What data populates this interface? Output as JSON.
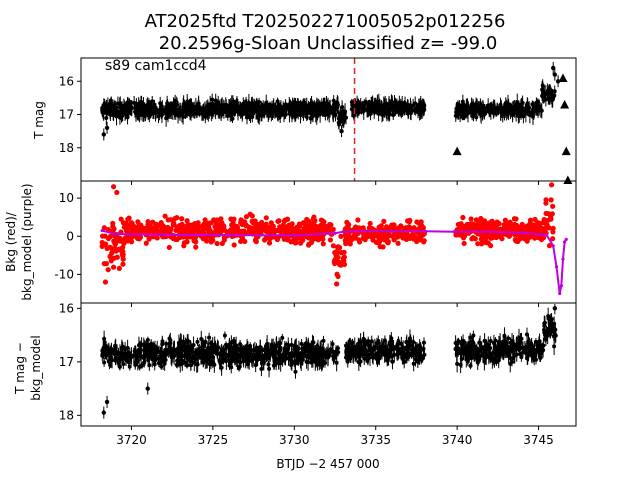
{
  "figure": {
    "title_line1": "AT2025ftd  T202502271005052p012256",
    "title_line2": "20.2596g-Sloan Unclassified z= -99.0",
    "xlabel": "BTJD −2 457 000"
  },
  "chart_data": [
    {
      "type": "scatter",
      "panel": "top",
      "ylabel": "T mag",
      "annotation": "s89 cam1ccd4",
      "xlim": [
        3716.9,
        3747.3
      ],
      "ylim": [
        19.0,
        15.3
      ],
      "y_inverted": true,
      "yticks": [
        16,
        17,
        18
      ],
      "vline_x": 3733.7,
      "vline_color": "#d62728",
      "point_color": "#000000",
      "segments": [
        {
          "x_start": 3718.2,
          "x_end": 3732.7,
          "y_center": 16.85,
          "scatter": 0.28
        },
        {
          "x_start": 3732.7,
          "x_end": 3733.2,
          "y_center": 17.05,
          "scatter": 0.4
        },
        {
          "x_start": 3733.5,
          "x_end": 3738.0,
          "y_center": 16.8,
          "scatter": 0.25
        },
        {
          "x_start": 3739.9,
          "x_end": 3745.2,
          "y_center": 16.85,
          "scatter": 0.28
        },
        {
          "x_start": 3745.2,
          "x_end": 3746.0,
          "y_center": 16.4,
          "scatter": 0.35
        }
      ],
      "outlier_points": [
        [
          3718.3,
          17.6
        ],
        [
          3718.5,
          17.4
        ],
        [
          3732.9,
          17.5
        ],
        [
          3745.9,
          15.6
        ],
        [
          3746.0,
          15.8
        ],
        [
          3746.2,
          16.0
        ],
        [
          3745.7,
          16.3
        ]
      ],
      "triangle_markers": [
        [
          3740.0,
          18.1
        ],
        [
          3746.5,
          15.9
        ],
        [
          3746.6,
          16.7
        ],
        [
          3746.7,
          18.1
        ],
        [
          3746.8,
          19.0
        ]
      ]
    },
    {
      "type": "scatter",
      "panel": "middle",
      "ylabel_line1": "Bkg (red)/",
      "ylabel_line2": "bkg_model (purple)",
      "xlim": [
        3716.9,
        3747.3
      ],
      "ylim": [
        -17.5,
        14.5
      ],
      "yticks": [
        10,
        0,
        -10
      ],
      "series": [
        {
          "role": "bkg",
          "color": "#ff0000"
        },
        {
          "role": "bkg_model",
          "color": "#bf00e0"
        }
      ],
      "bkg_segments": [
        {
          "x_start": 3718.2,
          "x_end": 3719.5,
          "center": -3.0,
          "spread": 9.0
        },
        {
          "x_start": 3719.5,
          "x_end": 3732.4,
          "center": 1.5,
          "spread": 4.5
        },
        {
          "x_start": 3732.4,
          "x_end": 3733.1,
          "center": -6.0,
          "spread": 6.0
        },
        {
          "x_start": 3733.1,
          "x_end": 3738.0,
          "center": 1.0,
          "spread": 4.0
        },
        {
          "x_start": 3739.9,
          "x_end": 3745.3,
          "center": 1.5,
          "spread": 4.5
        },
        {
          "x_start": 3745.3,
          "x_end": 3745.9,
          "center": 4.0,
          "spread": 7.0
        }
      ],
      "bkg_extremes": [
        [
          3718.9,
          13.0
        ],
        [
          3719.1,
          11.5
        ],
        [
          3718.4,
          -12.0
        ],
        [
          3732.6,
          -12.5
        ],
        [
          3745.8,
          13.5
        ]
      ],
      "model": [
        [
          3718.2,
          1.5
        ],
        [
          3719.0,
          0.6
        ],
        [
          3722.0,
          0.4
        ],
        [
          3726.0,
          0.3
        ],
        [
          3730.0,
          0.2
        ],
        [
          3732.5,
          0.8
        ],
        [
          3733.0,
          1.2
        ],
        [
          3734.0,
          1.3
        ],
        [
          3736.0,
          1.3
        ],
        [
          3738.0,
          1.3
        ],
        [
          3739.9,
          1.2
        ],
        [
          3742.0,
          1.2
        ],
        [
          3744.0,
          0.9
        ],
        [
          3745.5,
          0.3
        ],
        [
          3745.9,
          -2.5
        ],
        [
          3746.1,
          -8.0
        ],
        [
          3746.3,
          -15.0
        ],
        [
          3746.4,
          -13.0
        ],
        [
          3746.5,
          -6.0
        ],
        [
          3746.6,
          -1.5
        ],
        [
          3746.7,
          -0.8
        ]
      ]
    },
    {
      "type": "scatter",
      "panel": "bottom",
      "ylabel_line1": "T mag −",
      "ylabel_line2": "bkg_model",
      "xlim": [
        3716.9,
        3747.3
      ],
      "ylim": [
        18.2,
        15.9
      ],
      "y_inverted": true,
      "yticks": [
        16,
        17,
        18
      ],
      "xticks": [
        3720,
        3725,
        3730,
        3735,
        3740,
        3745
      ],
      "point_color": "#000000",
      "segments": [
        {
          "x_start": 3718.2,
          "x_end": 3732.7,
          "y_center": 16.85,
          "scatter": 0.33
        },
        {
          "x_start": 3733.1,
          "x_end": 3738.0,
          "y_center": 16.8,
          "scatter": 0.3
        },
        {
          "x_start": 3739.9,
          "x_end": 3745.3,
          "y_center": 16.8,
          "scatter": 0.3
        },
        {
          "x_start": 3745.3,
          "x_end": 3746.1,
          "y_center": 16.4,
          "scatter": 0.3
        }
      ],
      "outlier_points": [
        [
          3718.3,
          17.95
        ],
        [
          3718.5,
          17.75
        ],
        [
          3721.0,
          17.5
        ],
        [
          3746.0,
          16.0
        ],
        [
          3745.8,
          16.2
        ]
      ]
    }
  ]
}
